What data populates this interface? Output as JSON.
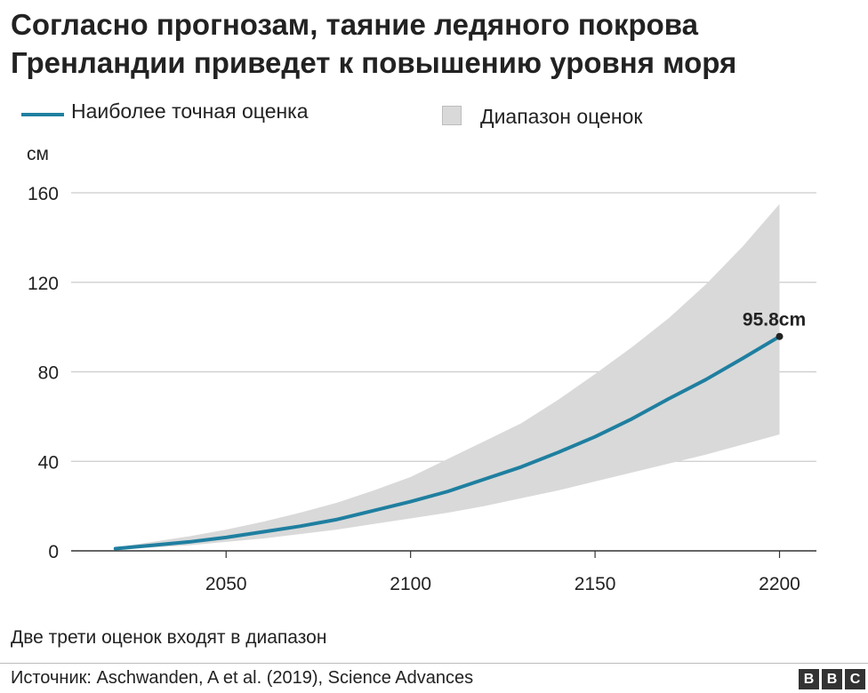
{
  "title": "Согласно прогнозам, таяние ледяного покрова Гренландии приведет к повышению уровня моря",
  "legend": {
    "line_label": "Наиболее точная оценка",
    "range_label": "Диапазон оценок"
  },
  "footnote": "Две трети оценок входят в диапазон",
  "source": "Источник: Aschwanden, A et al. (2019), Science Advances",
  "logo": {
    "letters": [
      "B",
      "B",
      "C"
    ]
  },
  "colors": {
    "line": "#1f7fa0",
    "band": "#d9d9d9",
    "grid": "#cccccc",
    "text": "#222222"
  },
  "chart_data": {
    "type": "line",
    "title": "Согласно прогнозам, таяние ледяного покрова Гренландии приведет к повышению уровня моря",
    "ylabel": "см",
    "xlim": [
      2008,
      2210
    ],
    "ylim": [
      0,
      160
    ],
    "x_ticks": [
      2050,
      2100,
      2150,
      2200
    ],
    "y_ticks": [
      0,
      40,
      80,
      120,
      160
    ],
    "grid": "horizontal",
    "legend_position": "top",
    "series": [
      {
        "name": "Наиболее точная оценка",
        "x": [
          2020,
          2030,
          2040,
          2050,
          2060,
          2070,
          2080,
          2090,
          2100,
          2110,
          2120,
          2130,
          2140,
          2150,
          2160,
          2170,
          2180,
          2190,
          2200
        ],
        "values": [
          1,
          2.5,
          4,
          6,
          8.5,
          11,
          14,
          18,
          22,
          26.5,
          32,
          37.5,
          44,
          51,
          59,
          68,
          76.5,
          86,
          95.8
        ]
      }
    ],
    "band": {
      "name": "Диапазон оценок",
      "x": [
        2020,
        2030,
        2040,
        2050,
        2060,
        2070,
        2080,
        2090,
        2100,
        2110,
        2120,
        2130,
        2140,
        2150,
        2160,
        2170,
        2180,
        2190,
        2200
      ],
      "lower": [
        0.5,
        1.5,
        2.5,
        4,
        5.5,
        7.5,
        9.5,
        12,
        14.5,
        17,
        20,
        23.5,
        27,
        31,
        35,
        39,
        43,
        47.5,
        52
      ],
      "upper": [
        1.5,
        4,
        6.5,
        9.5,
        13,
        17,
        21.5,
        27,
        33,
        41,
        49,
        57,
        67.5,
        79,
        91,
        104,
        119,
        136,
        155
      ]
    },
    "annotations": [
      {
        "x": 2200,
        "y": 95.8,
        "text": "95.8cm"
      }
    ]
  }
}
